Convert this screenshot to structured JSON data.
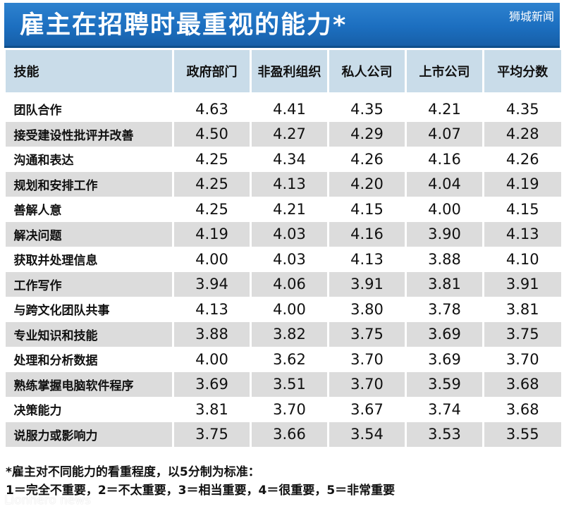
{
  "title": "雇主在招聘时最重视的能力*",
  "watermark": "狮城新闻",
  "columns": [
    "技能",
    "政府部门",
    "非盈利组织",
    "私人公司",
    "上市公司",
    "平均分数"
  ],
  "rows": [
    {
      "skill": "团队合作",
      "values": [
        "4.63",
        "4.41",
        "4.35",
        "4.21",
        "4.35"
      ]
    },
    {
      "skill": "接受建设性批评并改善",
      "values": [
        "4.50",
        "4.27",
        "4.29",
        "4.07",
        "4.28"
      ]
    },
    {
      "skill": "沟通和表达",
      "values": [
        "4.25",
        "4.34",
        "4.26",
        "4.16",
        "4.26"
      ]
    },
    {
      "skill": "规划和安排工作",
      "values": [
        "4.25",
        "4.13",
        "4.20",
        "4.04",
        "4.19"
      ]
    },
    {
      "skill": "善解人意",
      "values": [
        "4.25",
        "4.21",
        "4.15",
        "4.00",
        "4.15"
      ]
    },
    {
      "skill": "解决问题",
      "values": [
        "4.19",
        "4.03",
        "4.16",
        "3.90",
        "4.13"
      ]
    },
    {
      "skill": "获取并处理信息",
      "values": [
        "4.00",
        "4.03",
        "4.13",
        "3.88",
        "4.10"
      ]
    },
    {
      "skill": "工作写作",
      "values": [
        "3.94",
        "4.06",
        "3.91",
        "3.81",
        "3.91"
      ]
    },
    {
      "skill": "与跨文化团队共事",
      "values": [
        "4.13",
        "4.00",
        "3.80",
        "3.78",
        "3.81"
      ]
    },
    {
      "skill": "专业知识和技能",
      "values": [
        "3.88",
        "3.82",
        "3.75",
        "3.69",
        "3.75"
      ]
    },
    {
      "skill": "处理和分析数据",
      "values": [
        "4.00",
        "3.62",
        "3.70",
        "3.69",
        "3.70"
      ]
    },
    {
      "skill": "熟练掌握电脑软件程序",
      "values": [
        "3.69",
        "3.51",
        "3.70",
        "3.59",
        "3.68"
      ]
    },
    {
      "skill": "决策能力",
      "values": [
        "3.81",
        "3.70",
        "3.67",
        "3.74",
        "3.68"
      ]
    },
    {
      "skill": "说服力或影响力",
      "values": [
        "3.75",
        "3.66",
        "3.54",
        "3.53",
        "3.55"
      ]
    }
  ],
  "footnote": {
    "line1": "*雇主对不同能力的看重程度，以5分制为标准：",
    "line2": "1＝完全不重要，2＝不太重要，3＝相当重要，4＝很重要，5＝非常重要"
  },
  "watermark_bottom": "Lionhero news",
  "colors": {
    "title_bg": "#1c6fc0",
    "header_bg": "#c9dce9",
    "stripe_bg": "#dcdcdc"
  }
}
